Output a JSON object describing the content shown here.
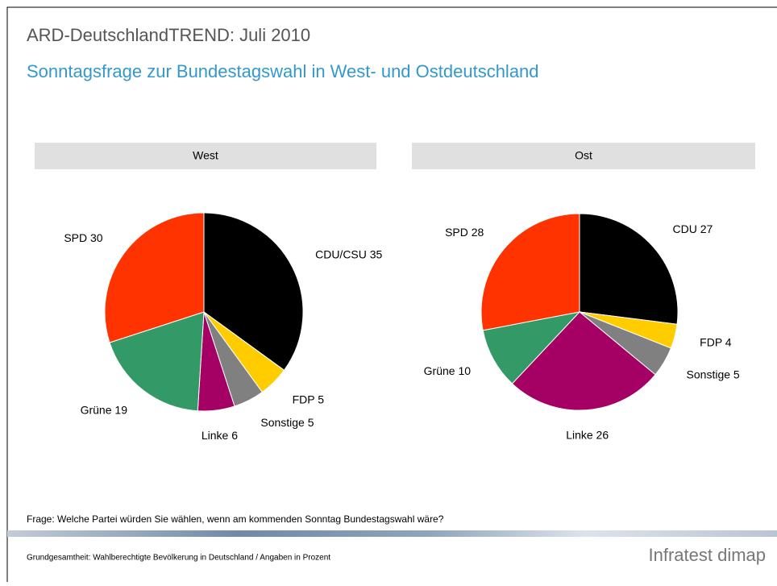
{
  "header": {
    "title": "ARD-DeutschlandTREND: Juli 2010",
    "subtitle": "Sonntagsfrage zur Bundestagswahl in West- und Ostdeutschland"
  },
  "chart_data": [
    {
      "type": "pie",
      "title": "West",
      "categories": [
        "CDU/CSU",
        "FDP",
        "Sonstige",
        "Linke",
        "Grüne",
        "SPD"
      ],
      "values": [
        35,
        5,
        5,
        6,
        19,
        30
      ],
      "colors": [
        "#000000",
        "#ffcc00",
        "#808080",
        "#a50064",
        "#339966",
        "#ff3300"
      ]
    },
    {
      "type": "pie",
      "title": "Ost",
      "categories": [
        "CDU",
        "FDP",
        "Sonstige",
        "Linke",
        "Grüne",
        "SPD"
      ],
      "values": [
        27,
        4,
        5,
        26,
        10,
        28
      ],
      "colors": [
        "#000000",
        "#ffcc00",
        "#808080",
        "#a50064",
        "#339966",
        "#ff3300"
      ]
    }
  ],
  "footer": {
    "question": "Frage: Welche Partei würden Sie wählen, wenn am kommenden Sonntag Bundestagswahl wäre?",
    "note": "Grundgesamtheit: Wahlberechtigte Bevölkerung in Deutschland / Angaben in Prozent",
    "logo": "Infratest dimap"
  }
}
